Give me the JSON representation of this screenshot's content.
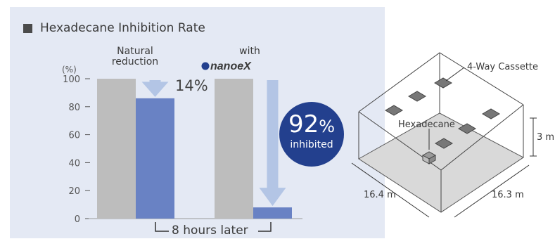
{
  "title": "Hexadecane Inhibition Rate",
  "chart_data": {
    "type": "bar",
    "ylabel_unit": "(%)",
    "ylim": [
      0,
      100
    ],
    "yticks": [
      0,
      20,
      40,
      60,
      80,
      100
    ],
    "groups": [
      {
        "label": "Natural\nreduction",
        "before": 100,
        "after": 86,
        "reduction_label": "14%"
      },
      {
        "label": "with",
        "logo_text": "nanoeX",
        "before": 100,
        "after": 8,
        "reduction_label": "92%",
        "reduction_note": "inhibited"
      }
    ],
    "time_label": "8 hours later",
    "colors": {
      "before": "#bdbdbd",
      "after": "#6982c4",
      "arrow": "#b3c5e5",
      "badge": "#23408e"
    }
  },
  "diagram": {
    "cassette_label": "4-Way Cassette",
    "source_label": "Hexadecane",
    "height_label": "3 m",
    "length_label": "16.4 m",
    "width_label": "16.3 m"
  }
}
